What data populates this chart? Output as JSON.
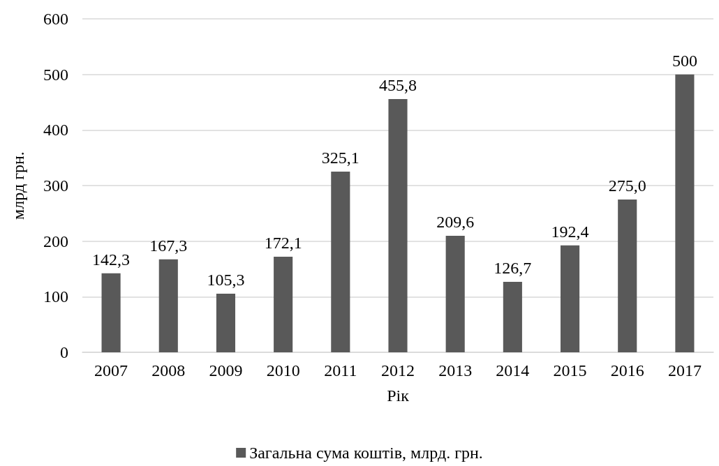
{
  "chart_data": {
    "type": "bar",
    "xlabel": "Рік",
    "ylabel": "млрд грн.",
    "categories": [
      "2007",
      "2008",
      "2009",
      "2010",
      "2011",
      "2012",
      "2013",
      "2014",
      "2015",
      "2016",
      "2017"
    ],
    "series": [
      {
        "name": "Загальна сума коштів, млрд. грн.",
        "color": "#595959",
        "values": [
          142.3,
          167.3,
          105.3,
          172.1,
          325.1,
          455.8,
          209.6,
          126.7,
          192.4,
          275.0,
          500
        ],
        "value_labels": [
          "142,3",
          "167,3",
          "105,3",
          "172,1",
          "325,1",
          "455,8",
          "209,6",
          "126,7",
          "192,4",
          "275,0",
          "500"
        ]
      }
    ],
    "ylim": [
      0,
      600
    ],
    "yticks": [
      0,
      100,
      200,
      300,
      400,
      500,
      600
    ],
    "grid": "y",
    "legend": "bottom"
  }
}
